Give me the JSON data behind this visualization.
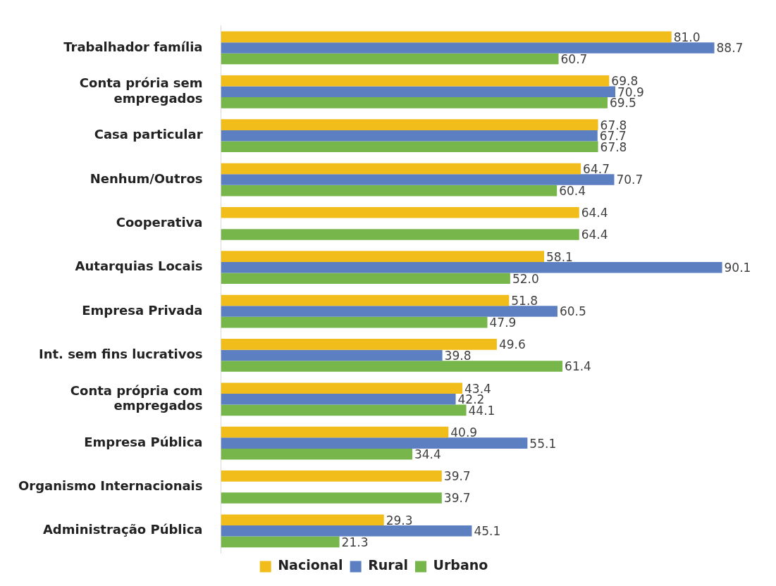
{
  "chart_data": {
    "type": "bar",
    "orientation": "horizontal",
    "categories": [
      "Trabalhador família",
      "Conta prória sem empregados",
      "Casa particular",
      "Nenhum/Outros",
      "Cooperativa",
      "Autarquias Locais",
      "Empresa Privada",
      "Int. sem fins lucrativos",
      "Conta própria com empregados",
      "Empresa Pública",
      "Organismo Internacionais",
      "Administração Pública"
    ],
    "series": [
      {
        "name": "Nacional",
        "color": "#f0bd1b",
        "values": [
          81.0,
          69.8,
          67.8,
          64.7,
          64.4,
          58.1,
          51.8,
          49.6,
          43.4,
          40.9,
          39.7,
          29.3
        ],
        "value_labels": [
          "81.0",
          "69.8",
          "67.8",
          "64.7",
          "64.4",
          "58.1",
          "51.8",
          "49.6",
          "43.4",
          "40.9",
          "39.7",
          "29.3"
        ]
      },
      {
        "name": "Rural",
        "color": "#5b7fc1",
        "values": [
          88.7,
          70.9,
          67.7,
          70.7,
          null,
          90.1,
          60.5,
          39.8,
          42.2,
          55.1,
          null,
          45.1
        ],
        "value_labels": [
          "88.7",
          "70.9",
          "67.7",
          "70.7",
          null,
          "90.1",
          "60.5",
          "39.8",
          "42.2",
          "55.1",
          null,
          "45.1"
        ]
      },
      {
        "name": "Urbano",
        "color": "#76b64b",
        "values": [
          60.7,
          69.5,
          67.8,
          60.4,
          64.4,
          52.0,
          47.9,
          61.4,
          44.1,
          34.4,
          39.7,
          21.3
        ],
        "value_labels": [
          "60.7",
          "69.5",
          "67.8",
          "60.4",
          "64.4",
          "52.0",
          "47.9",
          "61.4",
          "44.1",
          "34.4",
          "39.7",
          "21.3"
        ]
      }
    ],
    "legend": "bottom"
  }
}
